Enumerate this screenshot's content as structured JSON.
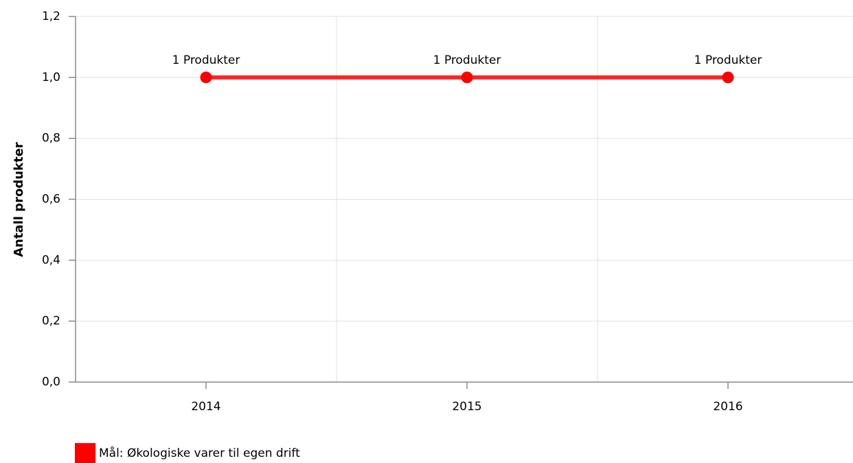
{
  "chart_data": {
    "type": "line",
    "y_label": "Antall produkter",
    "categories": [
      "2014",
      "2015",
      "2016"
    ],
    "series": [
      {
        "name": "Mål: Økologiske varer til egen drift",
        "color": "#ff0000",
        "values": [
          1,
          1,
          1
        ],
        "value_labels": [
          "1 Produkter",
          "1 Produkter",
          "1 Produkter"
        ]
      }
    ],
    "ylim": [
      0,
      1.2
    ],
    "yticks": [
      {
        "value": 0,
        "label": "0,0"
      },
      {
        "value": 0.2,
        "label": "0,2"
      },
      {
        "value": 0.4,
        "label": "0,4"
      },
      {
        "value": 0.6,
        "label": "0,6"
      },
      {
        "value": 0.8,
        "label": "0,8"
      },
      {
        "value": 1.0,
        "label": "1,0"
      },
      {
        "value": 1.2,
        "label": "1,2"
      }
    ],
    "grid": true,
    "legend": "bottom-left"
  }
}
